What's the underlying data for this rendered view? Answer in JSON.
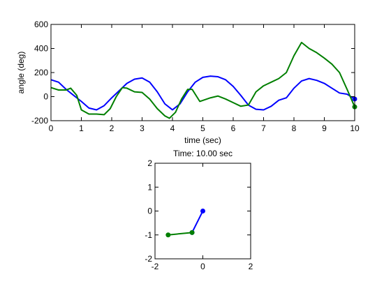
{
  "chart_data": [
    {
      "type": "line",
      "xlabel": "time (sec)",
      "ylabel": "angle (deg)",
      "xlim": [
        0,
        10
      ],
      "ylim": [
        -200,
        600
      ],
      "xticks": [
        0,
        1,
        2,
        3,
        4,
        5,
        6,
        7,
        8,
        9,
        10
      ],
      "yticks": [
        -200,
        0,
        200,
        400,
        600
      ],
      "grid": false,
      "series": [
        {
          "color": "#0000ff",
          "x": [
            0,
            0.25,
            0.5,
            0.75,
            1.0,
            1.25,
            1.5,
            1.75,
            2.0,
            2.25,
            2.5,
            2.75,
            3.0,
            3.25,
            3.5,
            3.75,
            4.0,
            4.25,
            4.5,
            4.75,
            5.0,
            5.25,
            5.5,
            5.75,
            6.0,
            6.25,
            6.5,
            6.75,
            7.0,
            7.25,
            7.5,
            7.75,
            8.0,
            8.25,
            8.5,
            8.75,
            9.0,
            9.25,
            9.5,
            9.75,
            10.0
          ],
          "y": [
            140,
            120,
            60,
            10,
            -40,
            -95,
            -110,
            -75,
            -10,
            50,
            110,
            145,
            155,
            120,
            40,
            -60,
            -110,
            -60,
            40,
            120,
            160,
            170,
            165,
            140,
            85,
            10,
            -70,
            -105,
            -110,
            -80,
            -30,
            -10,
            70,
            130,
            150,
            135,
            110,
            70,
            30,
            20,
            -20
          ],
          "end_marker": true
        },
        {
          "color": "#007f00",
          "x": [
            0,
            0.25,
            0.5,
            0.65,
            0.85,
            1.0,
            1.25,
            1.5,
            1.75,
            1.95,
            2.15,
            2.35,
            2.5,
            2.75,
            3.0,
            3.25,
            3.5,
            3.75,
            3.9,
            4.1,
            4.3,
            4.5,
            4.65,
            4.9,
            5.25,
            5.5,
            5.75,
            6.0,
            6.25,
            6.5,
            6.75,
            7.0,
            7.25,
            7.5,
            7.75,
            8.0,
            8.25,
            8.5,
            8.75,
            9.0,
            9.25,
            9.5,
            9.75,
            10.0
          ],
          "y": [
            75,
            55,
            55,
            70,
            10,
            -110,
            -145,
            -145,
            -150,
            -100,
            0,
            75,
            70,
            40,
            35,
            -20,
            -100,
            -160,
            -180,
            -130,
            -20,
            60,
            60,
            -40,
            -10,
            5,
            -20,
            -50,
            -80,
            -70,
            40,
            90,
            120,
            150,
            200,
            340,
            450,
            400,
            365,
            320,
            270,
            200,
            60,
            -85
          ],
          "end_marker": true
        }
      ]
    },
    {
      "type": "line",
      "title": "Time: 10.00 sec",
      "xlim": [
        -2,
        2
      ],
      "ylim": [
        -2,
        2
      ],
      "xticks": [
        -2,
        0,
        2
      ],
      "yticks": [
        -2,
        -1,
        0,
        1,
        2
      ],
      "grid": false,
      "series": [
        {
          "color": "#0000ff",
          "x": [
            0,
            -0.45
          ],
          "y": [
            0,
            -0.9
          ],
          "markers": true
        },
        {
          "color": "#007f00",
          "x": [
            -0.45,
            -1.45
          ],
          "y": [
            -0.9,
            -1.0
          ],
          "markers": true
        }
      ]
    }
  ]
}
